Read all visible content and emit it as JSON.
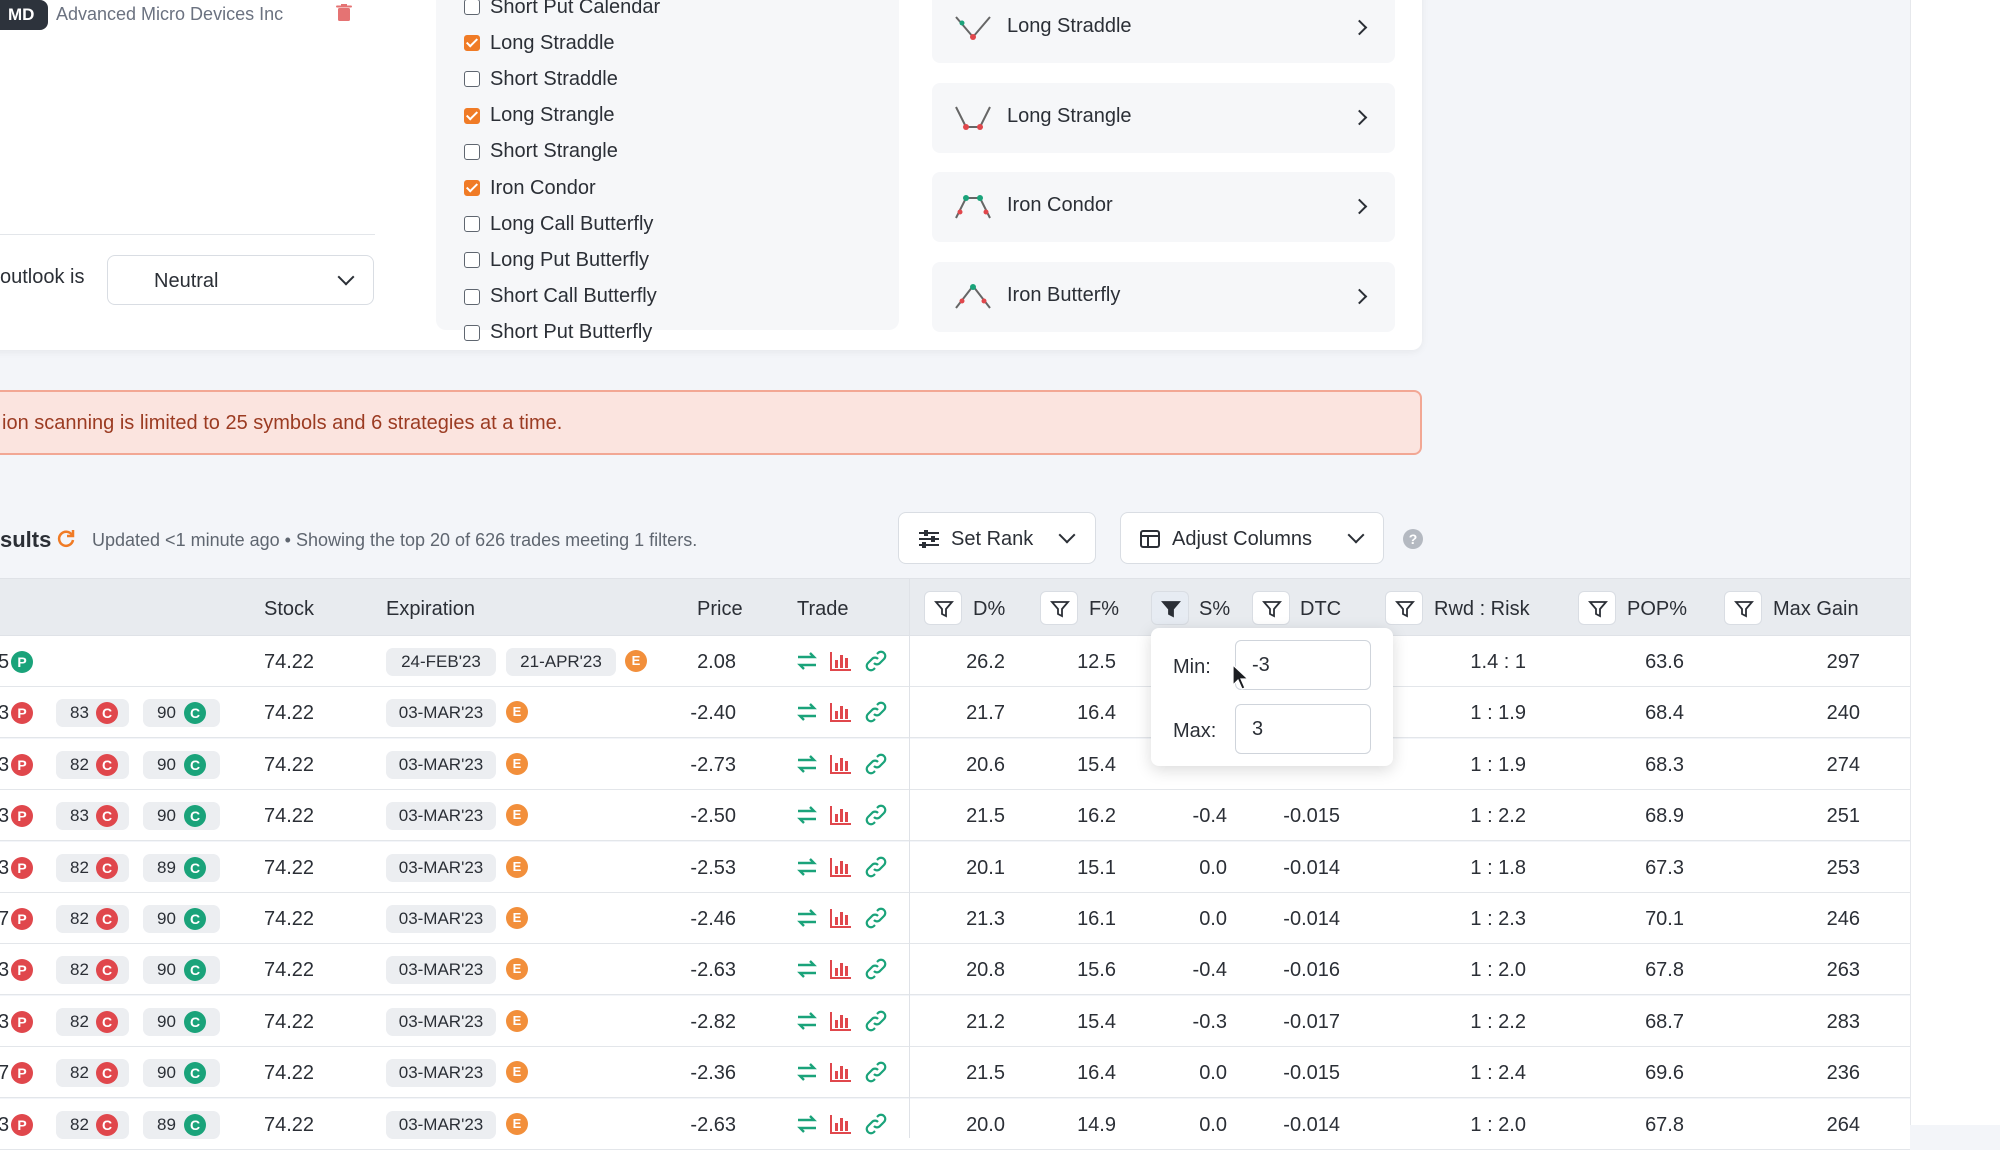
{
  "symbol": {
    "ticker": "MD",
    "name": "Advanced Micro Devices Inc"
  },
  "outlook": {
    "label": "outlook is",
    "value": "Neutral"
  },
  "strategy_checklist": [
    {
      "label": "Short Put Calendar",
      "checked": false
    },
    {
      "label": "Long Straddle",
      "checked": true
    },
    {
      "label": "Short Straddle",
      "checked": false
    },
    {
      "label": "Long Strangle",
      "checked": true
    },
    {
      "label": "Short Strangle",
      "checked": false
    },
    {
      "label": "Iron Condor",
      "checked": true
    },
    {
      "label": "Long Call Butterfly",
      "checked": false
    },
    {
      "label": "Long Put Butterfly",
      "checked": false
    },
    {
      "label": "Short Call Butterfly",
      "checked": false
    },
    {
      "label": "Short Put Butterfly",
      "checked": false
    }
  ],
  "selected_strategies": [
    {
      "label": "Long Straddle",
      "icon": "long-straddle-icon"
    },
    {
      "label": "Long Strangle",
      "icon": "long-strangle-icon"
    },
    {
      "label": "Iron Condor",
      "icon": "iron-condor-icon"
    },
    {
      "label": "Iron Butterfly",
      "icon": "iron-butterfly-icon"
    }
  ],
  "alert": {
    "text": "ion scanning is limited to 25 symbols and 6 strategies at a time."
  },
  "results": {
    "title": "sults",
    "status": "Updated <1 minute ago  •  Showing the top 20 of 626 trades meeting 1 filters.",
    "set_rank_label": "Set Rank",
    "adjust_columns_label": "Adjust Columns",
    "help": "?"
  },
  "columns": {
    "stock": "Stock",
    "expiration": "Expiration",
    "price": "Price",
    "trade": "Trade",
    "d": "D%",
    "f": "F%",
    "s": "S%",
    "dtc": "DTC",
    "rwd": "Rwd : Risk",
    "pop": "POP%",
    "max": "Max Gain"
  },
  "filter_popup": {
    "min_label": "Min:",
    "min_value": "-3",
    "max_label": "Max:",
    "max_value": "3"
  },
  "colors": {
    "accent": "#f07b26",
    "teal": "#1aa37a",
    "red": "#e0474c"
  },
  "rows": [
    {
      "lead": "5",
      "legs": [
        {
          "t": "P",
          "c": "G"
        }
      ],
      "strikes": [],
      "stock": "74.22",
      "exp": [
        "24-FEB'23",
        "21-APR'23"
      ],
      "price": "2.08",
      "d": "26.2",
      "f": "12.5",
      "s": "",
      "dtc": "",
      "rwd": "1.4 : 1",
      "pop": "63.6",
      "max": "297"
    },
    {
      "lead": "3",
      "legs": [
        {
          "t": "P",
          "c": "P"
        }
      ],
      "strikes": [
        {
          "v": "83",
          "t": "C",
          "c": "C"
        },
        {
          "v": "90",
          "t": "C",
          "c": "G"
        }
      ],
      "stock": "74.22",
      "exp": [
        "03-MAR'23"
      ],
      "price": "-2.40",
      "d": "21.7",
      "f": "16.4",
      "s": "",
      "dtc": "",
      "rwd": "1 : 1.9",
      "pop": "68.4",
      "max": "240"
    },
    {
      "lead": "3",
      "legs": [
        {
          "t": "P",
          "c": "P"
        }
      ],
      "strikes": [
        {
          "v": "82",
          "t": "C",
          "c": "C"
        },
        {
          "v": "90",
          "t": "C",
          "c": "G"
        }
      ],
      "stock": "74.22",
      "exp": [
        "03-MAR'23"
      ],
      "price": "-2.73",
      "d": "20.6",
      "f": "15.4",
      "s": "",
      "dtc": "",
      "rwd": "1 : 1.9",
      "pop": "68.3",
      "max": "274"
    },
    {
      "lead": "3",
      "legs": [
        {
          "t": "P",
          "c": "P"
        }
      ],
      "strikes": [
        {
          "v": "83",
          "t": "C",
          "c": "C"
        },
        {
          "v": "90",
          "t": "C",
          "c": "G"
        }
      ],
      "stock": "74.22",
      "exp": [
        "03-MAR'23"
      ],
      "price": "-2.50",
      "d": "21.5",
      "f": "16.2",
      "s": "-0.4",
      "dtc": "-0.015",
      "rwd": "1 : 2.2",
      "pop": "68.9",
      "max": "251"
    },
    {
      "lead": "3",
      "legs": [
        {
          "t": "P",
          "c": "P"
        }
      ],
      "strikes": [
        {
          "v": "82",
          "t": "C",
          "c": "C"
        },
        {
          "v": "89",
          "t": "C",
          "c": "G"
        }
      ],
      "stock": "74.22",
      "exp": [
        "03-MAR'23"
      ],
      "price": "-2.53",
      "d": "20.1",
      "f": "15.1",
      "s": "0.0",
      "dtc": "-0.014",
      "rwd": "1 : 1.8",
      "pop": "67.3",
      "max": "253"
    },
    {
      "lead": "7",
      "legs": [
        {
          "t": "P",
          "c": "P"
        }
      ],
      "strikes": [
        {
          "v": "82",
          "t": "C",
          "c": "C"
        },
        {
          "v": "90",
          "t": "C",
          "c": "G"
        }
      ],
      "stock": "74.22",
      "exp": [
        "03-MAR'23"
      ],
      "price": "-2.46",
      "d": "21.3",
      "f": "16.1",
      "s": "0.0",
      "dtc": "-0.014",
      "rwd": "1 : 2.3",
      "pop": "70.1",
      "max": "246"
    },
    {
      "lead": "3",
      "legs": [
        {
          "t": "P",
          "c": "P"
        }
      ],
      "strikes": [
        {
          "v": "82",
          "t": "C",
          "c": "C"
        },
        {
          "v": "90",
          "t": "C",
          "c": "G"
        }
      ],
      "stock": "74.22",
      "exp": [
        "03-MAR'23"
      ],
      "price": "-2.63",
      "d": "20.8",
      "f": "15.6",
      "s": "-0.4",
      "dtc": "-0.016",
      "rwd": "1 : 2.0",
      "pop": "67.8",
      "max": "263"
    },
    {
      "lead": "3",
      "legs": [
        {
          "t": "P",
          "c": "P"
        }
      ],
      "strikes": [
        {
          "v": "82",
          "t": "C",
          "c": "C"
        },
        {
          "v": "90",
          "t": "C",
          "c": "G"
        }
      ],
      "stock": "74.22",
      "exp": [
        "03-MAR'23"
      ],
      "price": "-2.82",
      "d": "21.2",
      "f": "15.4",
      "s": "-0.3",
      "dtc": "-0.017",
      "rwd": "1 : 2.2",
      "pop": "68.7",
      "max": "283"
    },
    {
      "lead": "7",
      "legs": [
        {
          "t": "P",
          "c": "P"
        }
      ],
      "strikes": [
        {
          "v": "82",
          "t": "C",
          "c": "C"
        },
        {
          "v": "90",
          "t": "C",
          "c": "G"
        }
      ],
      "stock": "74.22",
      "exp": [
        "03-MAR'23"
      ],
      "price": "-2.36",
      "d": "21.5",
      "f": "16.4",
      "s": "0.0",
      "dtc": "-0.015",
      "rwd": "1 : 2.4",
      "pop": "69.6",
      "max": "236"
    },
    {
      "lead": "3",
      "legs": [
        {
          "t": "P",
          "c": "P"
        }
      ],
      "strikes": [
        {
          "v": "82",
          "t": "C",
          "c": "C"
        },
        {
          "v": "89",
          "t": "C",
          "c": "G"
        }
      ],
      "stock": "74.22",
      "exp": [
        "03-MAR'23"
      ],
      "price": "-2.63",
      "d": "20.0",
      "f": "14.9",
      "s": "0.0",
      "dtc": "-0.014",
      "rwd": "1 : 2.0",
      "pop": "67.8",
      "max": "264"
    }
  ]
}
